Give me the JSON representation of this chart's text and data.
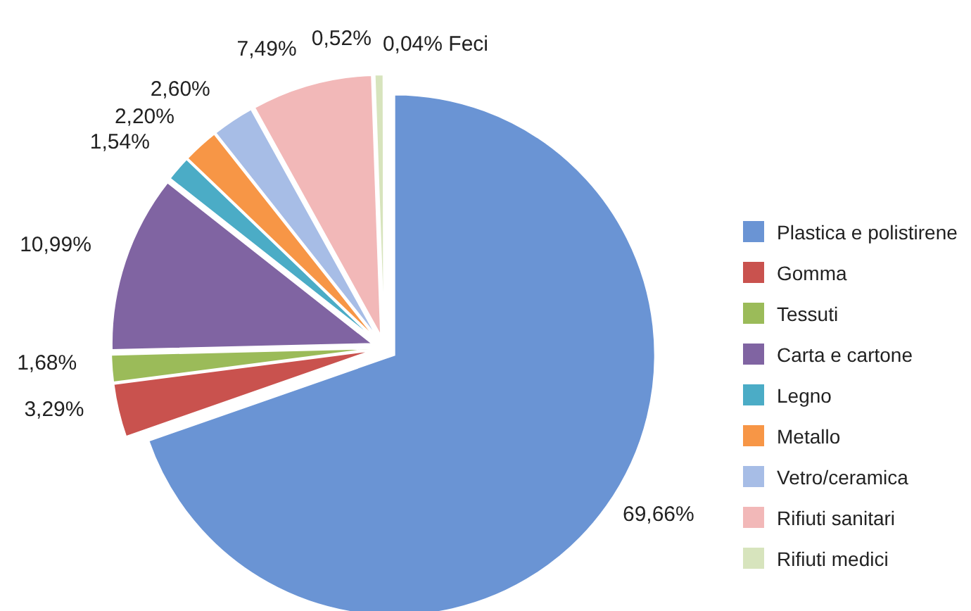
{
  "chart_data": {
    "type": "pie",
    "categories": [
      "Plastica e polistirene",
      "Gomma",
      "Tessuti",
      "Carta e cartone",
      "Legno",
      "Metallo",
      "Vetro/ceramica",
      "Rifiuti sanitari",
      "Rifiuti medici",
      null
    ],
    "values": [
      69.66,
      3.29,
      1.68,
      10.99,
      1.54,
      2.2,
      2.6,
      7.49,
      0.52,
      0.04
    ],
    "colors": [
      "#6a94d4",
      "#c9524e",
      "#9bbb59",
      "#8064a2",
      "#4bacc6",
      "#f79646",
      "#a7bde6",
      "#f2b8b8",
      "#d7e4bd",
      "#e6e6d8"
    ],
    "value_labels": [
      "69,66%",
      "3,29%",
      "1,68%",
      "10,99%",
      "1,54%",
      "2,20%",
      "2,60%",
      "7,49%",
      "0,52%",
      "0,04% Feci"
    ],
    "legend": "right"
  }
}
